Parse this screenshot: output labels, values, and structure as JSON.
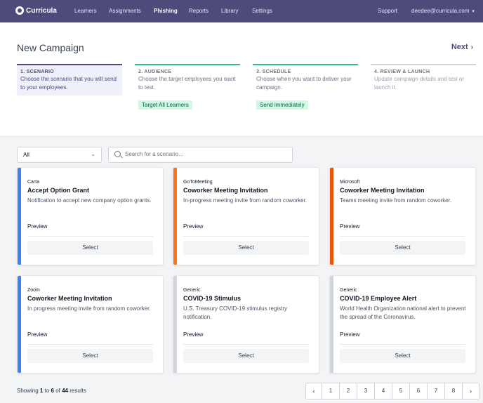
{
  "nav": {
    "brand": "Curricula",
    "items": [
      "Learners",
      "Assignments",
      "Phishing",
      "Reports",
      "Library",
      "Settings"
    ],
    "active": "Phishing",
    "support": "Support",
    "user": "deedee@curricula.com"
  },
  "header": {
    "title": "New Campaign",
    "next_label": "Next"
  },
  "steps": [
    {
      "title": "1. SCENARIO",
      "desc": "Choose the scenario that you will send to your employees.",
      "state": "active"
    },
    {
      "title": "2. AUDIENCE",
      "desc": "Choose the target employees you want to test.",
      "state": "complete",
      "badge": "Target All Learners"
    },
    {
      "title": "3. SCHEDULE",
      "desc": "Choose when you want to deliver your campaign.",
      "state": "complete",
      "badge": "Send immediately"
    },
    {
      "title": "4. REVIEW & LAUNCH",
      "desc": "Update campaign details and test or launch it.",
      "state": "pending"
    }
  ],
  "filters": {
    "category_selected": "All",
    "search_placeholder": "Search for a scenario..."
  },
  "cards": [
    {
      "vendor": "Carta",
      "title": "Accept Option Grant",
      "desc": "Notification to accept new company option grants.",
      "preview": "Preview",
      "select": "Select",
      "stripe": "#3b82f6"
    },
    {
      "vendor": "GoToMeeting",
      "title": "Coworker Meeting Invitation",
      "desc": "In-progress meeting invite from random coworker.",
      "preview": "Preview",
      "select": "Select",
      "stripe": "#f97316"
    },
    {
      "vendor": "Microsoft",
      "title": "Coworker Meeting Invitation",
      "desc": "Teams meeting invite from random coworker.",
      "preview": "Preview",
      "select": "Select",
      "stripe": "#ea580c"
    },
    {
      "vendor": "Zoom",
      "title": "Coworker Meeting Invitation",
      "desc": "In progress meeting invite from random coworker.",
      "preview": "Preview",
      "select": "Select",
      "stripe": "#3b82f6"
    },
    {
      "vendor": "Generic",
      "title": "COVID-19 Stimulus",
      "desc": "U.S. Treasury COVID-19 stimulus registry notification.",
      "preview": "Preview",
      "select": "Select",
      "stripe": "#d1d5db"
    },
    {
      "vendor": "Generic",
      "title": "COVID-19 Employee Alert",
      "desc": "World Health Organization national alert to prevent the spread of the Coronavirus.",
      "preview": "Preview",
      "select": "Select",
      "stripe": "#d1d5db"
    }
  ],
  "results": {
    "prefix": "Showing",
    "from": "1",
    "to_word": "to",
    "to": "6",
    "of_word": "of",
    "total": "44",
    "suffix": "results"
  },
  "pagination": {
    "prev": "‹",
    "pages": [
      "1",
      "2",
      "3",
      "4",
      "5",
      "6",
      "7",
      "8"
    ],
    "next": "›"
  },
  "colors": {
    "nav_bg": "#4c4b7a",
    "step_active": "#4c4b7a",
    "step_complete": "#34b69a",
    "step_pending": "#d1d5db",
    "badge_bg": "#d1fae5"
  }
}
